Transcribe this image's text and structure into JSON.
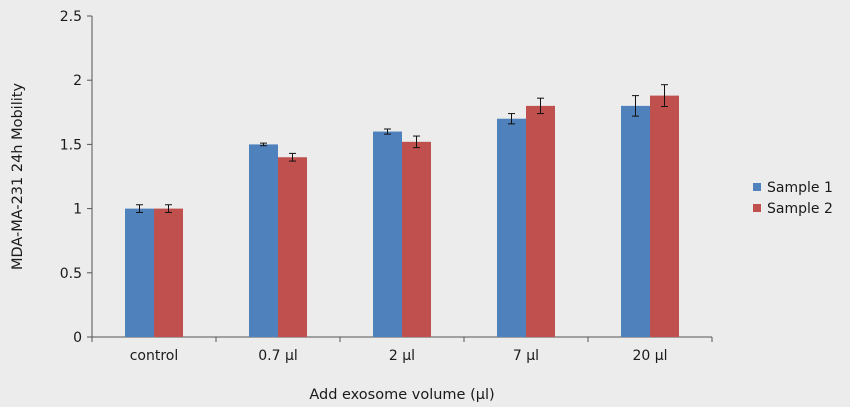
{
  "chart_data": {
    "type": "bar",
    "categories": [
      "control",
      "0.7 μl",
      "2 μl",
      "7 μl",
      "20 μl"
    ],
    "series": [
      {
        "name": "Sample 1",
        "color": "#4f81bd",
        "values": [
          1.0,
          1.5,
          1.6,
          1.7,
          1.8
        ],
        "errors": [
          0.03,
          0.01,
          0.02,
          0.04,
          0.08
        ]
      },
      {
        "name": "Sample 2",
        "color": "#c0504d",
        "values": [
          1.0,
          1.4,
          1.52,
          1.8,
          1.88
        ],
        "errors": [
          0.03,
          0.03,
          0.045,
          0.06,
          0.085
        ]
      }
    ],
    "xlabel": "Add exosome volume (μl)",
    "ylabel": "MDA-MA-231 24h Mobility",
    "ylim": [
      0,
      2.5
    ],
    "yticks": [
      "0",
      "0.5",
      "1",
      "1.5",
      "2",
      "2.5"
    ],
    "grid": false,
    "legend": "right"
  }
}
